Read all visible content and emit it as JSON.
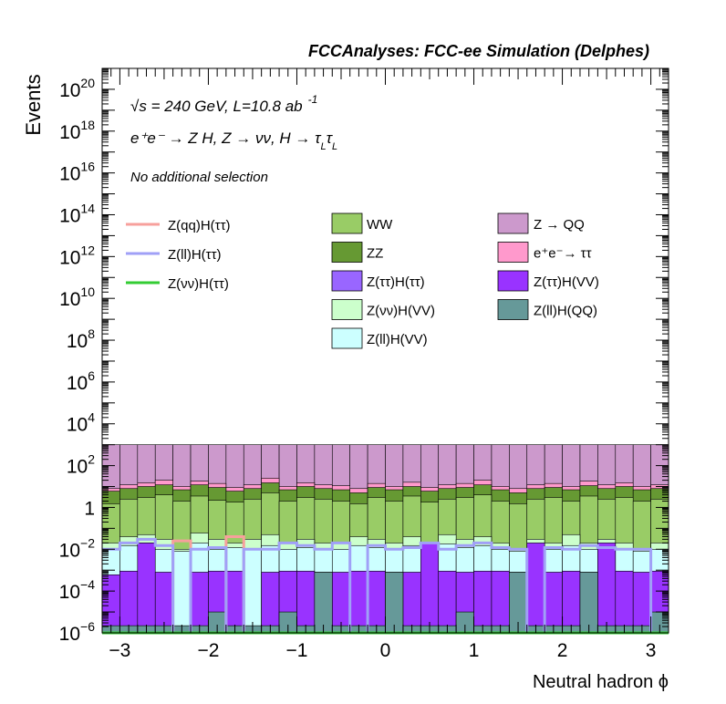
{
  "header": {
    "title": "FCCAnalyses: FCC-ee Simulation (Delphes)"
  },
  "annotations": {
    "energy_sqrt": "√s",
    "energy_rest": " = 240 GeV, L=10.8 ab",
    "energy_exp": "-1",
    "process": "e⁺e⁻ → Z H, Z → νν, H → τ",
    "process_sub": "L",
    "process_tau2": "τ",
    "selection": "No additional selection"
  },
  "legend": {
    "lines": [
      {
        "label": "Z(qq)H(ττ)",
        "color": "#f7a09c"
      },
      {
        "label": "Z(ll)H(ττ)",
        "color": "#a0a0f7"
      },
      {
        "label": "Z(νν)H(ττ)",
        "color": "#33cc33"
      }
    ],
    "col2": [
      {
        "label": "WW",
        "color": "#99cc66"
      },
      {
        "label": "ZZ",
        "color": "#669933"
      },
      {
        "label": "Z(ττ)H(ττ)",
        "color": "#9966ff"
      },
      {
        "label": "Z(νν)H(VV)",
        "color": "#ccffcc"
      },
      {
        "label": "Z(ll)H(VV)",
        "color": "#ccffff"
      }
    ],
    "col3": [
      {
        "label": "Z → QQ",
        "color": "#cc99cc"
      },
      {
        "label": "e⁺e⁻→ ττ",
        "color": "#ff99cc"
      },
      {
        "label": "Z(ττ)H(VV)",
        "color": "#9933ff"
      },
      {
        "label": "Z(ll)H(QQ)",
        "color": "#669999"
      }
    ]
  },
  "chart_data": {
    "type": "area",
    "xlabel": "Neutral hadron ϕ",
    "ylabel": "Events",
    "xlim": [
      -3.2,
      3.2
    ],
    "ylim": [
      1e-06,
      1e+21
    ],
    "log_y": true,
    "x_ticks": [
      "−3",
      "−2",
      "−1",
      "0",
      "1",
      "2",
      "3"
    ],
    "y_ticks": [
      {
        "base": "10",
        "exp": "−6"
      },
      {
        "base": "10",
        "exp": "−4"
      },
      {
        "base": "10",
        "exp": "−2"
      },
      {
        "base": "1",
        "exp": ""
      },
      {
        "base": "10",
        "exp": "2"
      },
      {
        "base": "10",
        "exp": "4"
      },
      {
        "base": "10",
        "exp": "6"
      },
      {
        "base": "10",
        "exp": "8"
      },
      {
        "base": "10",
        "exp": "10"
      },
      {
        "base": "10",
        "exp": "12"
      },
      {
        "base": "10",
        "exp": "14"
      },
      {
        "base": "10",
        "exp": "16"
      },
      {
        "base": "10",
        "exp": "18"
      },
      {
        "base": "10",
        "exp": "20"
      }
    ],
    "bin_edges": [
      -3.2,
      -3.0,
      -2.8,
      -2.6,
      -2.4,
      -2.2,
      -2.0,
      -1.8,
      -1.6,
      -1.4,
      -1.2,
      -1.0,
      -0.8,
      -0.6,
      -0.4,
      -0.2,
      0.0,
      0.2,
      0.4,
      0.6,
      0.8,
      1.0,
      1.2,
      1.4,
      1.6,
      1.8,
      2.0,
      2.2,
      2.4,
      2.6,
      2.8,
      3.0,
      3.2
    ],
    "stack_totals": [
      {
        "name": "Z → QQ",
        "values": [
          1000,
          1000,
          1000,
          1000,
          1000,
          1000,
          1000,
          1000,
          1000,
          1000,
          1000,
          1000,
          1000,
          1000,
          1000,
          1000,
          1000,
          1000,
          1000,
          1000,
          1000,
          1000,
          1000,
          1000,
          1000,
          1000,
          1000,
          1000,
          1000,
          1000,
          1000,
          1000
        ]
      },
      {
        "name": "e⁺e⁻→ ττ",
        "values": [
          8,
          12,
          15,
          20,
          10,
          18,
          14,
          9,
          12,
          25,
          10,
          15,
          12,
          11,
          8,
          14,
          10,
          16,
          9,
          12,
          14,
          20,
          10,
          8,
          12,
          14,
          10,
          18,
          12,
          15,
          10,
          12
        ]
      },
      {
        "name": "ZZ",
        "values": [
          6,
          8,
          10,
          12,
          7,
          12,
          9,
          6,
          8,
          15,
          7,
          10,
          8,
          7,
          5,
          9,
          7,
          10,
          6,
          8,
          9,
          12,
          7,
          5,
          8,
          9,
          7,
          11,
          8,
          10,
          7,
          8
        ]
      },
      {
        "name": "WW",
        "values": [
          1.5,
          2.5,
          3,
          4,
          2,
          3.5,
          2.2,
          1.8,
          2.5,
          5,
          2,
          3,
          2.5,
          2,
          1.5,
          3,
          2,
          3.5,
          1.8,
          2.5,
          3,
          4,
          2,
          1.5,
          2.5,
          3,
          2,
          3.5,
          2.5,
          3,
          2,
          2.5
        ]
      },
      {
        "name": "Z(νν)H(VV)",
        "values": [
          0.02,
          0.04,
          0.05,
          0.03,
          0.01,
          0.06,
          0.03,
          0.02,
          0.03,
          0.05,
          0.02,
          0.03,
          0.02,
          0.02,
          0.04,
          0.03,
          0.02,
          0.04,
          0.02,
          0.05,
          0.03,
          0.04,
          0.02,
          0.01,
          0.03,
          0.02,
          0.05,
          0.02,
          0.03,
          0.02,
          0.01,
          0.02
        ]
      },
      {
        "name": "Z(ll)H(VV)",
        "values": [
          0.01,
          0.015,
          0.02,
          0.01,
          0.008,
          0.02,
          0.01,
          0.012,
          0.01,
          0.015,
          0.01,
          0.012,
          0.01,
          0.01,
          0.015,
          0.012,
          0.01,
          0.015,
          0.01,
          0.018,
          0.012,
          0.015,
          0.01,
          0.008,
          0.012,
          0.01,
          0.015,
          0.01,
          0.012,
          0.01,
          0.008,
          0.01
        ]
      },
      {
        "name": "Z(ττ)H(VV)",
        "values": [
          0.0006,
          0.0009,
          0.02,
          0.0008,
          1e-06,
          0.0008,
          0.0009,
          0.0009,
          1e-06,
          0.0008,
          0.0009,
          0.0009,
          0.0008,
          0.0008,
          0.0009,
          0.0009,
          0.0008,
          0.0008,
          0.02,
          0.0009,
          0.0008,
          0.0009,
          0.0009,
          0.0008,
          0.02,
          0.0008,
          0.0009,
          0.0008,
          0.02,
          0.0009,
          0.0008,
          0.0009
        ]
      },
      {
        "name": "Z(ll)H(QQ)",
        "values": [
          2.2e-06,
          2.2e-06,
          2.2e-06,
          2.2e-06,
          2.2e-06,
          2.2e-06,
          1e-05,
          2.2e-06,
          2.2e-06,
          2.2e-06,
          1e-05,
          2.2e-06,
          0.0008,
          2.2e-06,
          2.2e-06,
          2.2e-06,
          0.0008,
          2.2e-06,
          2.2e-06,
          2.2e-06,
          1e-05,
          2.2e-06,
          2.2e-06,
          0.0008,
          2.2e-06,
          2.2e-06,
          2.2e-06,
          0.0008,
          2.2e-06,
          2.2e-06,
          2.2e-06,
          1e-05
        ]
      }
    ],
    "overlay_lines": [
      {
        "name": "Z(qq)H(ττ)",
        "values": [
          1e-06,
          1e-06,
          1e-06,
          1e-06,
          0.025,
          1e-06,
          1e-06,
          0.04,
          1e-06,
          1e-06,
          1e-06,
          1e-06,
          1e-06,
          1e-06,
          1e-06,
          1e-06,
          1e-06,
          1e-06,
          1e-06,
          1e-06,
          1e-06,
          1e-06,
          1e-06,
          1e-06,
          1e-06,
          1e-06,
          1e-06,
          1e-06,
          1e-06,
          1e-06,
          1e-06,
          1e-06
        ]
      },
      {
        "name": "Z(ll)H(ττ)",
        "values": [
          0.01,
          0.02,
          0.03,
          0.015,
          1e-06,
          0.01,
          0.012,
          1e-06,
          0.01,
          0.01,
          0.02,
          0.015,
          0.01,
          0.02,
          1e-06,
          0.015,
          0.01,
          0.012,
          0.02,
          0.01,
          0.015,
          0.02,
          0.012,
          0.01,
          1e-06,
          0.012,
          0.01,
          0.015,
          0.012,
          0.01,
          0.01,
          1e-06
        ]
      },
      {
        "name": "Z(νν)H(ττ)",
        "values": [
          1e-06,
          1e-06,
          1e-06,
          1e-06,
          1e-06,
          1e-06,
          1e-06,
          1e-06,
          1e-06,
          1e-06,
          1e-06,
          1e-06,
          1e-06,
          1e-06,
          1e-06,
          1e-06,
          1e-06,
          1e-06,
          1e-06,
          1e-06,
          1e-06,
          1e-06,
          1e-06,
          1e-06,
          1e-06,
          1e-06,
          1e-06,
          1e-06,
          1e-06,
          1e-06,
          1e-06,
          1e-06
        ]
      }
    ]
  }
}
